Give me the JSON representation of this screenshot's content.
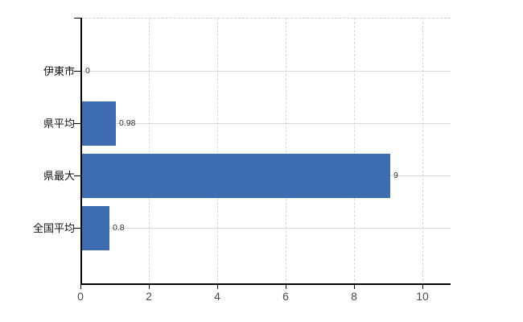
{
  "chart_data": {
    "type": "bar",
    "orientation": "horizontal",
    "title": "",
    "categories": [
      "伊東市",
      "県平均",
      "県最大",
      "全国平均"
    ],
    "values": [
      0,
      0.98,
      9,
      0.8
    ],
    "value_labels": [
      "0",
      "0.98",
      "9",
      "0.8"
    ],
    "xlabel": "",
    "ylabel": "",
    "xlim": [
      0,
      10.8
    ],
    "xticks": [
      0,
      2,
      4,
      6,
      8,
      10
    ],
    "xtick_labels": [
      "0",
      "2",
      "4",
      "6",
      "8",
      "10"
    ],
    "grid": true,
    "legend": "none",
    "colors": {
      "bar": "#3e6db2",
      "hgrid": "#d8dcd4",
      "vgrid": "#d8d4d8",
      "axis": "#000000",
      "tick_label": "#4c4c46",
      "value_label": "#333333",
      "category_label": "#111111",
      "background": "#ffffff"
    }
  }
}
